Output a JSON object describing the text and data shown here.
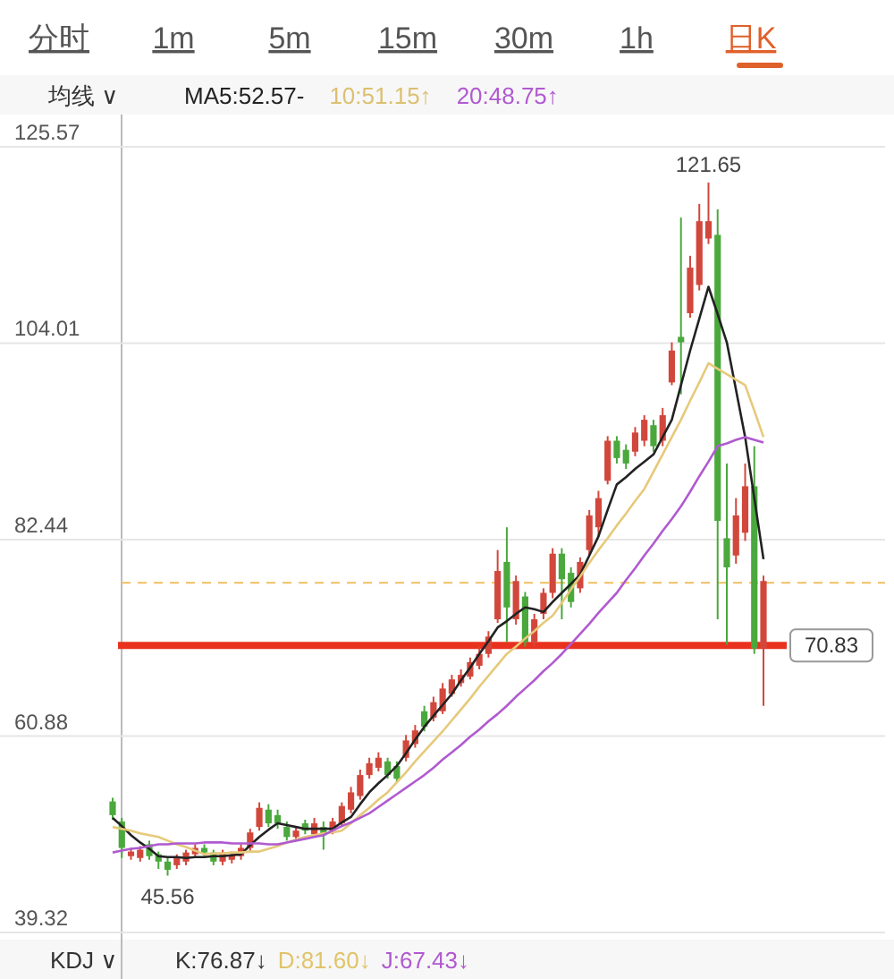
{
  "chart_data": {
    "type": "candlestick",
    "categories": [
      null,
      null,
      null,
      null,
      null,
      null,
      null,
      null,
      null,
      null,
      null,
      null,
      null,
      null,
      null,
      null,
      null,
      null,
      null,
      null,
      null,
      null,
      null,
      null,
      null,
      null,
      null,
      null,
      null,
      null,
      null,
      null,
      null,
      null,
      null,
      null,
      null,
      null,
      null,
      null,
      null,
      null,
      null,
      null,
      null,
      null,
      null,
      null,
      null,
      null,
      null,
      null,
      null,
      null,
      null,
      null,
      null,
      null,
      null,
      null,
      null,
      null,
      null,
      null,
      null,
      null,
      null,
      null,
      null,
      null,
      null,
      null
    ],
    "ohlc": [
      [
        53.7,
        54.1,
        51.7,
        52.2
      ],
      [
        51.5,
        51.9,
        47.5,
        48.6
      ],
      [
        47.7,
        48.6,
        47.3,
        48.2
      ],
      [
        47.5,
        48.8,
        47.1,
        48.4
      ],
      [
        49.0,
        49.4,
        47.3,
        47.7
      ],
      [
        47.9,
        48.2,
        46.3,
        47.1
      ],
      [
        47.1,
        47.5,
        45.56,
        46.2
      ],
      [
        46.7,
        47.9,
        46.3,
        47.5
      ],
      [
        47.1,
        48.4,
        46.7,
        48.1
      ],
      [
        47.9,
        49.0,
        47.5,
        48.6
      ],
      [
        48.6,
        49.0,
        47.7,
        48.1
      ],
      [
        48.1,
        48.4,
        46.7,
        47.1
      ],
      [
        47.1,
        48.4,
        46.7,
        48.1
      ],
      [
        47.3,
        48.2,
        46.9,
        47.9
      ],
      [
        47.7,
        49.0,
        47.3,
        48.6
      ],
      [
        48.6,
        50.7,
        48.2,
        50.3
      ],
      [
        50.9,
        53.6,
        50.5,
        53.0
      ],
      [
        52.8,
        53.4,
        50.9,
        51.3
      ],
      [
        52.2,
        52.8,
        50.7,
        51.3
      ],
      [
        50.9,
        51.5,
        49.4,
        49.8
      ],
      [
        49.8,
        50.9,
        49.4,
        50.5
      ],
      [
        51.3,
        51.7,
        50.1,
        50.5
      ],
      [
        50.1,
        51.9,
        49.8,
        51.3
      ],
      [
        50.9,
        51.5,
        48.4,
        50.0
      ],
      [
        50.5,
        51.9,
        50.1,
        51.5
      ],
      [
        51.3,
        53.6,
        50.9,
        53.2
      ],
      [
        52.8,
        55.3,
        52.4,
        54.7
      ],
      [
        54.3,
        57.2,
        53.9,
        56.6
      ],
      [
        56.6,
        58.5,
        56.2,
        57.9
      ],
      [
        57.4,
        59.1,
        57.0,
        58.5
      ],
      [
        58.1,
        58.5,
        56.2,
        56.6
      ],
      [
        57.6,
        58.1,
        55.8,
        56.2
      ],
      [
        58.5,
        61.0,
        58.1,
        60.4
      ],
      [
        60.0,
        62.1,
        59.6,
        61.5
      ],
      [
        63.6,
        64.2,
        61.4,
        61.9
      ],
      [
        62.9,
        65.2,
        62.5,
        64.6
      ],
      [
        63.6,
        66.7,
        63.3,
        66.1
      ],
      [
        65.5,
        67.6,
        65.2,
        67.1
      ],
      [
        66.7,
        68.2,
        66.3,
        67.6
      ],
      [
        67.4,
        69.5,
        67.1,
        69.0
      ],
      [
        68.6,
        70.7,
        68.2,
        69.9
      ],
      [
        69.9,
        72.4,
        69.5,
        71.8
      ],
      [
        73.7,
        81.3,
        73.3,
        79.0
      ],
      [
        80.0,
        83.8,
        71.2,
        75.0
      ],
      [
        73.7,
        78.5,
        73.1,
        77.9
      ],
      [
        76.2,
        76.7,
        70.7,
        71.2
      ],
      [
        71.2,
        74.3,
        70.7,
        73.7
      ],
      [
        74.3,
        77.1,
        73.7,
        76.6
      ],
      [
        76.6,
        81.5,
        76.0,
        80.9
      ],
      [
        80.9,
        81.5,
        73.7,
        78.1
      ],
      [
        78.8,
        79.4,
        75.0,
        75.6
      ],
      [
        77.1,
        80.5,
        76.6,
        80.0
      ],
      [
        81.3,
        85.7,
        80.7,
        85.1
      ],
      [
        83.8,
        87.8,
        82.8,
        87.0
      ],
      [
        88.9,
        93.8,
        88.5,
        93.3
      ],
      [
        93.3,
        93.8,
        90.8,
        91.4
      ],
      [
        92.3,
        92.9,
        90.2,
        90.8
      ],
      [
        92.1,
        94.8,
        91.6,
        94.2
      ],
      [
        93.3,
        96.1,
        92.7,
        95.6
      ],
      [
        95.0,
        95.6,
        92.1,
        92.7
      ],
      [
        93.3,
        96.9,
        92.7,
        96.1
      ],
      [
        99.7,
        104.1,
        99.4,
        103.2
      ],
      [
        104.7,
        117.8,
        98.4,
        104.1
      ],
      [
        107.3,
        113.6,
        106.8,
        112.3
      ],
      [
        110.4,
        119.3,
        109.8,
        117.4
      ],
      [
        115.5,
        121.65,
        114.9,
        117.4
      ],
      [
        115.9,
        118.7,
        73.7,
        84.5
      ],
      [
        82.6,
        90.8,
        70.9,
        79.4
      ],
      [
        80.7,
        87.0,
        79.8,
        85.1
      ],
      [
        83.2,
        90.8,
        82.3,
        88.3
      ],
      [
        88.3,
        92.7,
        69.9,
        70.5
      ],
      [
        70.5,
        78.5,
        64.2,
        77.9
      ]
    ],
    "series": [
      {
        "name": "MA5:52.57-",
        "type": "line",
        "color": "#222222",
        "values": [
          51.9,
          51.0,
          50.0,
          49.2,
          48.5,
          47.7,
          47.6,
          47.6,
          47.5,
          47.6,
          47.6,
          47.7,
          47.7,
          47.8,
          47.9,
          48.9,
          49.8,
          50.6,
          51.3,
          51.1,
          50.9,
          50.7,
          50.7,
          50.7,
          50.7,
          51.4,
          52.0,
          53.4,
          54.7,
          55.7,
          56.6,
          57.6,
          59.0,
          60.5,
          61.9,
          63.1,
          64.3,
          65.5,
          67.0,
          68.4,
          69.9,
          71.3,
          72.8,
          73.5,
          74.3,
          75.0,
          74.8,
          74.5,
          75.6,
          76.6,
          77.6,
          78.6,
          80.7,
          82.8,
          85.7,
          88.5,
          89.3,
          90.2,
          91.0,
          91.8,
          93.7,
          95.6,
          99.4,
          103.2,
          106.7,
          110.2,
          107.2,
          104.1,
          98.9,
          93.7,
          87.0,
          80.3
        ]
      },
      {
        "name": "10:51.15↑",
        "type": "line",
        "color": "#e6c97a",
        "values": [
          50.9,
          50.7,
          50.5,
          50.2,
          50.0,
          49.8,
          49.4,
          49.0,
          48.7,
          48.3,
          47.9,
          48.0,
          48.0,
          48.1,
          48.1,
          48.2,
          48.2,
          48.5,
          48.8,
          49.2,
          49.5,
          49.8,
          50.0,
          50.2,
          50.3,
          50.5,
          51.3,
          52.2,
          53.0,
          53.9,
          54.7,
          55.8,
          56.9,
          58.1,
          59.2,
          60.3,
          61.4,
          62.6,
          63.8,
          65.0,
          66.3,
          67.5,
          68.7,
          69.9,
          70.7,
          71.6,
          72.4,
          73.3,
          74.1,
          75.5,
          77.0,
          78.4,
          79.9,
          81.3,
          82.6,
          84.0,
          85.3,
          86.7,
          88.0,
          89.9,
          91.8,
          93.7,
          95.6,
          97.7,
          99.7,
          101.8,
          101.2,
          100.6,
          100.0,
          99.4,
          96.6,
          93.7
        ]
      },
      {
        "name": "20:48.75↑",
        "type": "line",
        "color": "#b05ad0",
        "values": [
          48.1,
          48.3,
          48.5,
          48.6,
          48.8,
          49.0,
          49.0,
          49.1,
          49.1,
          49.1,
          49.2,
          49.2,
          49.2,
          49.1,
          49.1,
          49.1,
          49.1,
          49.0,
          49.0,
          49.2,
          49.4,
          49.6,
          49.8,
          50.0,
          50.5,
          51.0,
          51.4,
          51.9,
          52.4,
          53.1,
          53.8,
          54.5,
          55.2,
          55.9,
          56.6,
          57.4,
          58.3,
          59.1,
          59.9,
          60.8,
          61.6,
          62.5,
          63.3,
          64.2,
          65.2,
          66.1,
          67.0,
          68.0,
          68.9,
          69.9,
          71.0,
          72.1,
          73.2,
          74.4,
          75.5,
          76.6,
          78.0,
          79.3,
          80.7,
          82.0,
          83.4,
          84.7,
          86.1,
          87.7,
          89.4,
          91.0,
          92.7,
          93.0,
          93.4,
          93.7,
          93.4,
          93.1
        ]
      }
    ],
    "ylim": [
      39.32,
      125.57
    ],
    "yticks": [
      39.32,
      60.88,
      82.44,
      104.01,
      125.57
    ],
    "grid": "y",
    "legend": "top",
    "ref_lines": [
      {
        "axis": "y",
        "value": 70.83,
        "label": "70.83",
        "color": "#e8321e"
      },
      {
        "axis": "y",
        "value": 77.7,
        "color": "#f0c060",
        "line_style": "dashed"
      }
    ],
    "annotations": [
      {
        "text": "121.65",
        "y": 121.65
      },
      {
        "text": "45.56",
        "y": 45.56
      },
      "分时",
      "1m",
      "5m",
      "15m",
      "30m",
      "1h",
      "日K",
      "均线 ∨",
      "KDJ ∨",
      "K:76.87↓",
      "D:81.60↓",
      "J:67.43↓"
    ]
  }
}
